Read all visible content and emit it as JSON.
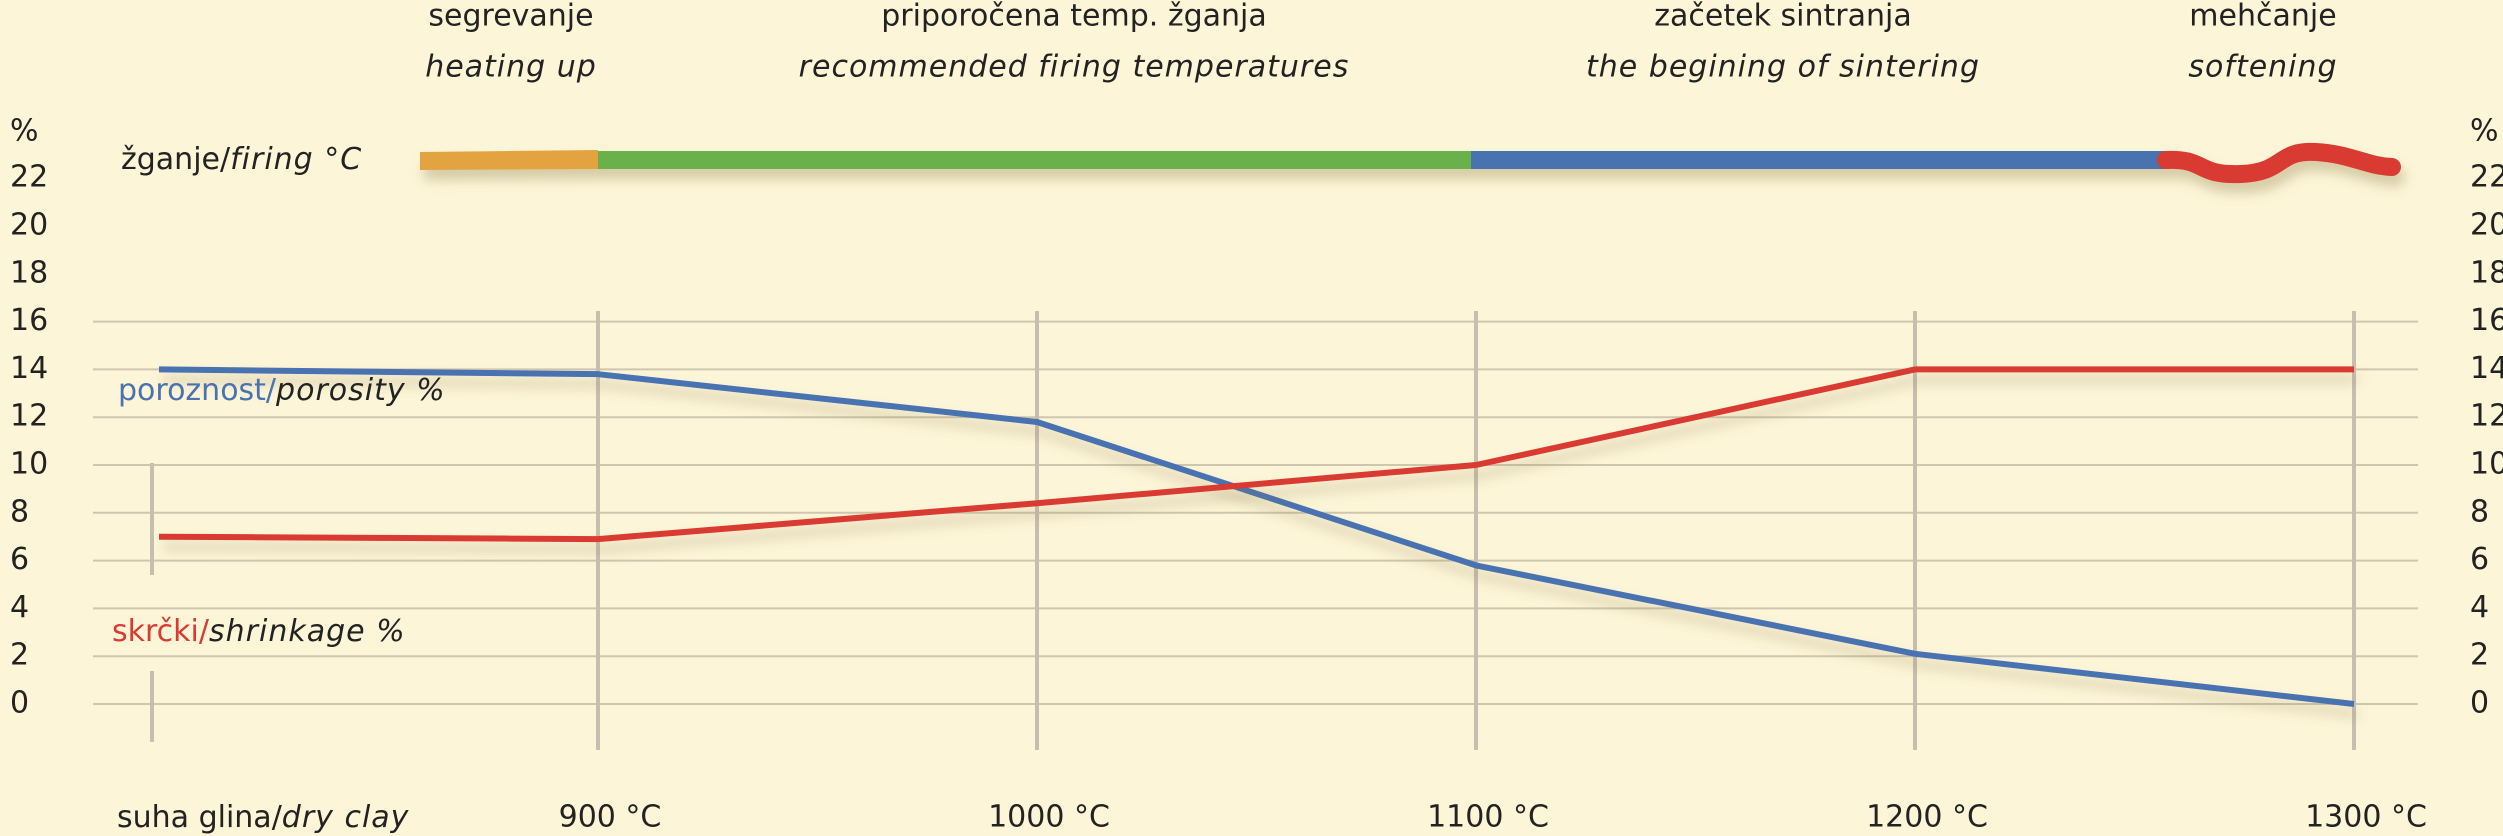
{
  "chart_data": {
    "type": "line",
    "ylabel": "%",
    "firing_label": "žganje/firing °C",
    "stages": [
      {
        "name": "segrevanje",
        "translation": "heating up",
        "color": "#e3a33f"
      },
      {
        "name": "priporočena temp. žganja",
        "translation": "recommended firing temperatures",
        "color": "#6ab04c"
      },
      {
        "name": "začetek sintranja",
        "translation": "the begining of sintering",
        "color": "#4a72b0"
      },
      {
        "name": "mehčanje",
        "translation": "softening",
        "color": "#d93a32"
      }
    ],
    "categories": [
      "suha glina/dry clay",
      "900 °C",
      "1000 °C",
      "1100 °C",
      "1200 °C",
      "1300 °C"
    ],
    "series": [
      {
        "name": "poroznost/porosity %",
        "color": "#4a72b0",
        "values": [
          14,
          13.8,
          11.8,
          5.8,
          2.1,
          0
        ]
      },
      {
        "name": "skrčki/shrinkage %",
        "color": "#d93a32",
        "values": [
          7,
          6.9,
          8.4,
          10,
          14,
          14
        ]
      }
    ],
    "ylim": [
      0,
      22
    ],
    "yticks": [
      0,
      2,
      4,
      6,
      8,
      10,
      12,
      14,
      16,
      18,
      20,
      22
    ],
    "grid": true
  }
}
